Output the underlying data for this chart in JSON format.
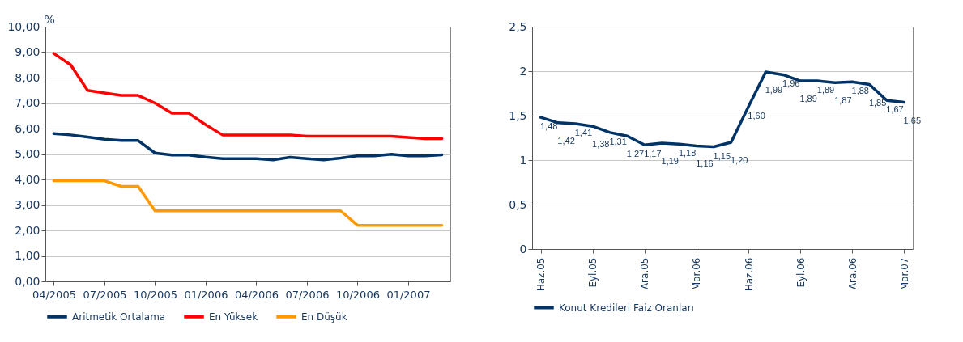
{
  "chart_data": [
    {
      "type": "line",
      "ylabel": "%",
      "categories": [
        "04/2005",
        null,
        null,
        "07/2005",
        null,
        null,
        "10/2005",
        null,
        null,
        "01/2006",
        null,
        null,
        "04/2006",
        null,
        null,
        "07/2006",
        null,
        null,
        "10/2006",
        null,
        null,
        "01/2007",
        null,
        null
      ],
      "series": [
        {
          "name": "Aritmetik Ortalama",
          "color": "#003366",
          "values": [
            5.8,
            5.75,
            5.67,
            5.58,
            5.53,
            5.53,
            5.04,
            4.96,
            4.96,
            4.88,
            4.82,
            4.82,
            4.82,
            4.77,
            4.87,
            4.82,
            4.77,
            4.84,
            4.93,
            4.93,
            4.99,
            4.93,
            4.93,
            4.97
          ]
        },
        {
          "name": "En Yüksek",
          "color": "#ff0000",
          "values": [
            8.95,
            8.5,
            7.5,
            7.4,
            7.3,
            7.3,
            7.0,
            6.6,
            6.6,
            6.15,
            5.75,
            5.75,
            5.75,
            5.75,
            5.75,
            5.7,
            5.7,
            5.7,
            5.7,
            5.7,
            5.7,
            5.65,
            5.6,
            5.6
          ]
        },
        {
          "name": "En Düşük",
          "color": "#ff9900",
          "values": [
            3.95,
            3.95,
            3.95,
            3.95,
            3.73,
            3.73,
            2.77,
            2.77,
            2.77,
            2.77,
            2.77,
            2.77,
            2.77,
            2.77,
            2.77,
            2.77,
            2.77,
            2.77,
            2.2,
            2.2,
            2.2,
            2.2,
            2.2,
            2.2
          ]
        }
      ],
      "ylim": [
        0,
        10
      ],
      "yticks": [
        {
          "value": 0,
          "label": "0,00"
        },
        {
          "value": 1,
          "label": "1,00"
        },
        {
          "value": 2,
          "label": "2,00"
        },
        {
          "value": 3,
          "label": "3,00"
        },
        {
          "value": 4,
          "label": "4,00"
        },
        {
          "value": 5,
          "label": "5,00"
        },
        {
          "value": 6,
          "label": "6,00"
        },
        {
          "value": 7,
          "label": "7,00"
        },
        {
          "value": 8,
          "label": "8,00"
        },
        {
          "value": 9,
          "label": "9,00"
        },
        {
          "value": 10,
          "label": "10,00"
        }
      ],
      "grid": "y",
      "legend": "bottom"
    },
    {
      "type": "line",
      "categories": [
        "Haz.05",
        null,
        null,
        "Eyl.05",
        null,
        null,
        "Ara.05",
        null,
        null,
        "Mar.06",
        null,
        null,
        "Haz.06",
        null,
        null,
        "Eyl.06",
        null,
        null,
        "Ara.06",
        null,
        null,
        "Mar.07"
      ],
      "series": [
        {
          "name": "Konut Kredileri Faiz Oranları",
          "color": "#003366",
          "values": [
            1.48,
            1.42,
            1.41,
            1.38,
            1.31,
            1.27,
            1.17,
            1.19,
            1.18,
            1.16,
            1.15,
            1.2,
            1.6,
            1.99,
            1.96,
            1.89,
            1.89,
            1.87,
            1.88,
            1.85,
            1.67,
            1.65
          ],
          "value_labels": [
            "1,48",
            "1,42",
            "1,41",
            "1,38",
            "1,31",
            "1,27",
            "1,17",
            "1,19",
            "1,18",
            "1,16",
            "1,15",
            "1,20",
            "1,60",
            "1,99",
            "1,96",
            "1,89",
            "1,89",
            "1,87",
            "1,88",
            "1,85",
            "1,67",
            "1,65"
          ]
        }
      ],
      "ylim": [
        0,
        2.5
      ],
      "yticks": [
        {
          "value": 0,
          "label": "0"
        },
        {
          "value": 0.5,
          "label": "0,5"
        },
        {
          "value": 1,
          "label": "1"
        },
        {
          "value": 1.5,
          "label": "1,5"
        },
        {
          "value": 2,
          "label": "2"
        },
        {
          "value": 2.5,
          "label": "2,5"
        }
      ],
      "grid": "y",
      "legend": "bottom"
    }
  ]
}
